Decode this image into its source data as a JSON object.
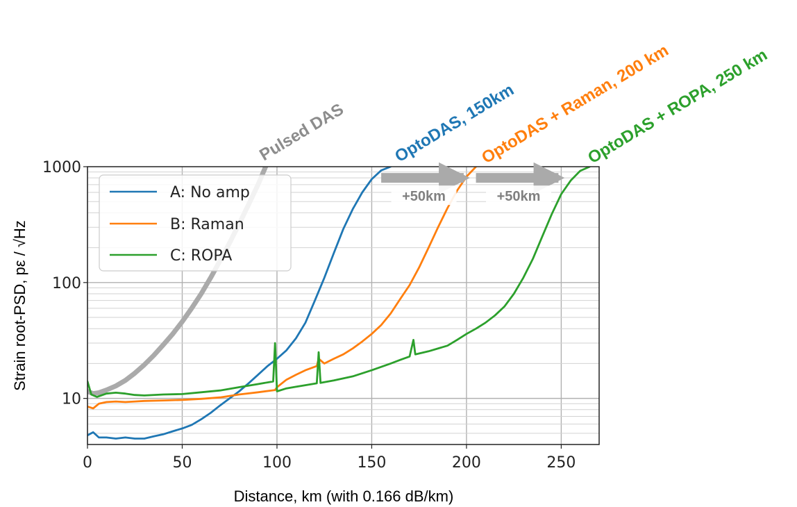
{
  "chart_data": {
    "type": "line",
    "xlabel": "Distance, km (with 0.166 dB/km)",
    "ylabel": "Strain root-PSD, pε / √Hz",
    "xlim": [
      0,
      270
    ],
    "ylim": [
      4,
      1000
    ],
    "y_scale": "log",
    "x_ticks": [
      0,
      50,
      100,
      150,
      200,
      250
    ],
    "y_ticks": [
      10,
      100,
      1000
    ],
    "y_tick_labels": [
      "10",
      "100",
      "1000"
    ],
    "grid": true,
    "legend_position": "upper-left",
    "series": [
      {
        "name": "A: No amp",
        "color": "#1f77b4",
        "points": [
          [
            0,
            4.8
          ],
          [
            3,
            5.1
          ],
          [
            6,
            4.6
          ],
          [
            10,
            4.6
          ],
          [
            15,
            4.5
          ],
          [
            20,
            4.6
          ],
          [
            25,
            4.5
          ],
          [
            30,
            4.5
          ],
          [
            35,
            4.7
          ],
          [
            40,
            4.9
          ],
          [
            45,
            5.2
          ],
          [
            50,
            5.5
          ],
          [
            55,
            5.9
          ],
          [
            60,
            6.6
          ],
          [
            65,
            7.5
          ],
          [
            70,
            8.7
          ],
          [
            75,
            10
          ],
          [
            80,
            11.5
          ],
          [
            85,
            13.5
          ],
          [
            90,
            16
          ],
          [
            95,
            19
          ],
          [
            100,
            22
          ],
          [
            105,
            26
          ],
          [
            110,
            33
          ],
          [
            115,
            45
          ],
          [
            120,
            70
          ],
          [
            125,
            110
          ],
          [
            130,
            180
          ],
          [
            135,
            290
          ],
          [
            140,
            430
          ],
          [
            145,
            600
          ],
          [
            150,
            780
          ],
          [
            155,
            930
          ],
          [
            160,
            1000
          ]
        ]
      },
      {
        "name": "B: Raman",
        "color": "#ff7f0e",
        "points": [
          [
            0,
            8.5
          ],
          [
            3,
            8.2
          ],
          [
            6,
            9
          ],
          [
            10,
            9.3
          ],
          [
            15,
            9.4
          ],
          [
            20,
            9.3
          ],
          [
            25,
            9.4
          ],
          [
            30,
            9.5
          ],
          [
            40,
            9.6
          ],
          [
            50,
            9.7
          ],
          [
            60,
            9.9
          ],
          [
            70,
            10.2
          ],
          [
            80,
            10.8
          ],
          [
            90,
            11.3
          ],
          [
            99,
            11.8
          ],
          [
            100,
            12.5
          ],
          [
            105,
            14.5
          ],
          [
            110,
            16
          ],
          [
            115,
            17.5
          ],
          [
            121,
            19
          ],
          [
            122,
            22
          ],
          [
            125,
            20
          ],
          [
            130,
            22
          ],
          [
            135,
            24
          ],
          [
            140,
            27
          ],
          [
            145,
            31
          ],
          [
            150,
            36
          ],
          [
            155,
            43
          ],
          [
            160,
            54
          ],
          [
            165,
            72
          ],
          [
            170,
            95
          ],
          [
            175,
            135
          ],
          [
            180,
            200
          ],
          [
            185,
            300
          ],
          [
            190,
            440
          ],
          [
            195,
            620
          ],
          [
            200,
            820
          ],
          [
            205,
            1000
          ]
        ]
      },
      {
        "name": "C: ROPA",
        "color": "#2ca02c",
        "points": [
          [
            0,
            14
          ],
          [
            2,
            10.8
          ],
          [
            5,
            10.3
          ],
          [
            10,
            11
          ],
          [
            15,
            11.2
          ],
          [
            20,
            11
          ],
          [
            25,
            10.7
          ],
          [
            30,
            10.6
          ],
          [
            40,
            10.8
          ],
          [
            50,
            10.9
          ],
          [
            60,
            11.3
          ],
          [
            70,
            11.7
          ],
          [
            80,
            12.5
          ],
          [
            90,
            13.3
          ],
          [
            98,
            14
          ],
          [
            99,
            30
          ],
          [
            100,
            11.5
          ],
          [
            105,
            12.2
          ],
          [
            110,
            12.6
          ],
          [
            115,
            13
          ],
          [
            121,
            13.5
          ],
          [
            122,
            25
          ],
          [
            123,
            13.6
          ],
          [
            130,
            14.3
          ],
          [
            140,
            15.5
          ],
          [
            150,
            17.5
          ],
          [
            160,
            20
          ],
          [
            165,
            21.5
          ],
          [
            170,
            23
          ],
          [
            172,
            32
          ],
          [
            173,
            24
          ],
          [
            180,
            25.5
          ],
          [
            190,
            28.5
          ],
          [
            195,
            32
          ],
          [
            200,
            36
          ],
          [
            205,
            40
          ],
          [
            210,
            45
          ],
          [
            215,
            52
          ],
          [
            220,
            62
          ],
          [
            225,
            80
          ],
          [
            230,
            110
          ],
          [
            235,
            160
          ],
          [
            240,
            250
          ],
          [
            245,
            390
          ],
          [
            250,
            580
          ],
          [
            255,
            760
          ],
          [
            260,
            920
          ],
          [
            265,
            1000
          ]
        ]
      },
      {
        "name": "Pulsed DAS",
        "color": "#aaaaaa",
        "points": [
          [
            0,
            11.5
          ],
          [
            3,
            11
          ],
          [
            6,
            11.2
          ],
          [
            10,
            11.8
          ],
          [
            15,
            12.8
          ],
          [
            20,
            14.3
          ],
          [
            25,
            16.5
          ],
          [
            30,
            19.5
          ],
          [
            35,
            23.5
          ],
          [
            40,
            29
          ],
          [
            45,
            36
          ],
          [
            50,
            46
          ],
          [
            55,
            60
          ],
          [
            60,
            80
          ],
          [
            65,
            110
          ],
          [
            70,
            155
          ],
          [
            75,
            220
          ],
          [
            80,
            320
          ],
          [
            85,
            470
          ],
          [
            90,
            700
          ],
          [
            94,
            1000
          ]
        ]
      }
    ],
    "annotations": [
      {
        "text": "Pulsed DAS",
        "color": "#8c8c8c"
      },
      {
        "text": "OptoDAS, 150km",
        "color": "#1f77b4"
      },
      {
        "text": "OptoDAS + Raman, 200 km",
        "color": "#ff7f0e"
      },
      {
        "text": "OptoDAS + ROPA, 250 km",
        "color": "#2ca02c"
      }
    ],
    "shift_arrows": [
      {
        "label": "+50km",
        "from_x": 155,
        "to_x": 200,
        "y": 800
      },
      {
        "label": "+50km",
        "from_x": 205,
        "to_x": 250,
        "y": 800
      }
    ]
  }
}
